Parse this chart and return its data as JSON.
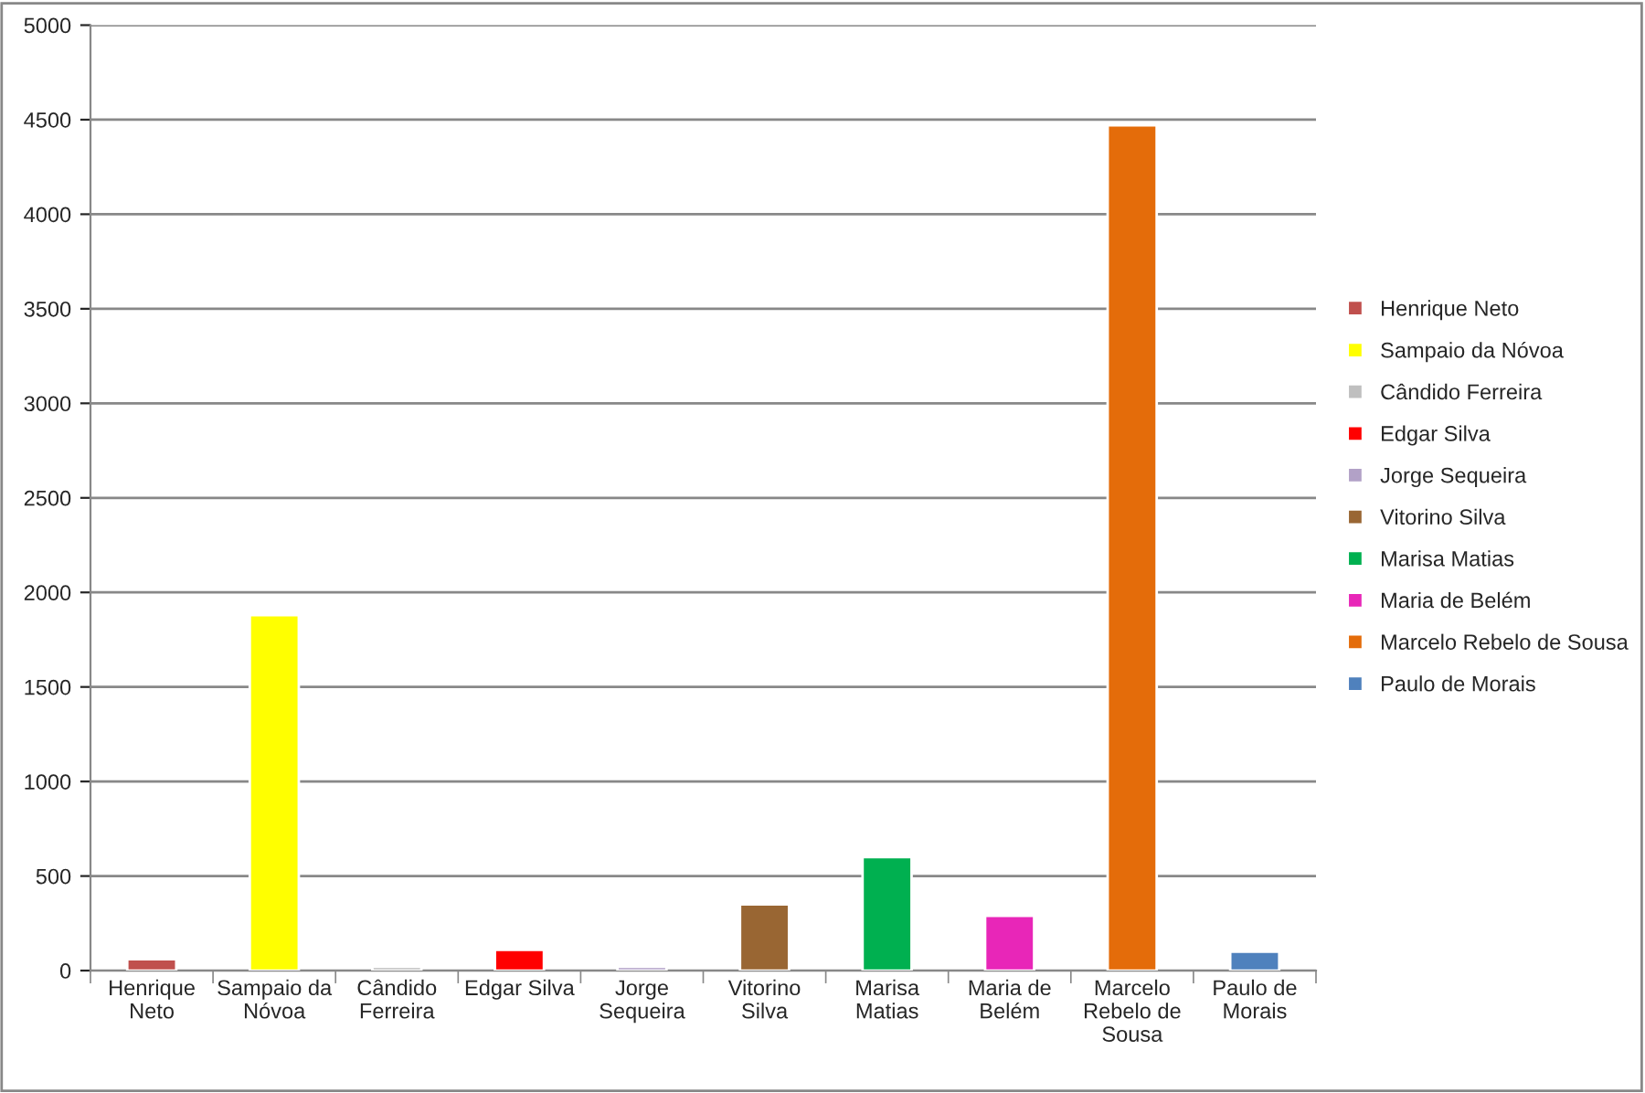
{
  "chart_data": {
    "type": "bar",
    "categories": [
      "Henrique Neto",
      "Sampaio da Nóvoa",
      "Cândido Ferreira",
      "Edgar Silva",
      "Jorge Sequeira",
      "Vitorino Silva",
      "Marisa Matias",
      "Maria de Belém",
      "Marcelo Rebelo de Sousa",
      "Paulo de Morais"
    ],
    "series": [
      {
        "name": "Henrique Neto",
        "color": "#c0504d",
        "values": [
          60,
          null,
          null,
          null,
          null,
          null,
          null,
          null,
          null,
          null
        ]
      },
      {
        "name": "Sampaio da Nóvoa",
        "color": "#ffff00",
        "values": [
          null,
          1880,
          null,
          null,
          null,
          null,
          null,
          null,
          null,
          null
        ]
      },
      {
        "name": "Cândido Ferreira",
        "color": "#bfbfbf",
        "values": [
          null,
          null,
          20,
          null,
          null,
          null,
          null,
          null,
          null,
          null
        ]
      },
      {
        "name": "Edgar Silva",
        "color": "#ff0000",
        "values": [
          null,
          null,
          null,
          110,
          null,
          null,
          null,
          null,
          null,
          null
        ]
      },
      {
        "name": "Jorge Sequeira",
        "color": "#b2a1c7",
        "values": [
          null,
          null,
          null,
          null,
          20,
          null,
          null,
          null,
          null,
          null
        ]
      },
      {
        "name": "Vitorino Silva",
        "color": "#996633",
        "values": [
          null,
          null,
          null,
          null,
          null,
          350,
          null,
          null,
          null,
          null
        ]
      },
      {
        "name": "Marisa Matias",
        "color": "#00b050",
        "values": [
          null,
          null,
          null,
          null,
          null,
          null,
          600,
          null,
          null,
          null
        ]
      },
      {
        "name": "Maria de Belém",
        "color": "#e826b8",
        "values": [
          null,
          null,
          null,
          null,
          null,
          null,
          null,
          290,
          null,
          null
        ]
      },
      {
        "name": "Marcelo Rebelo de Sousa",
        "color": "#e46c0a",
        "values": [
          null,
          null,
          null,
          null,
          null,
          null,
          null,
          null,
          4470,
          null
        ]
      },
      {
        "name": "Paulo de Morais",
        "color": "#4f81bd",
        "values": [
          null,
          null,
          null,
          null,
          null,
          null,
          null,
          null,
          null,
          100
        ]
      }
    ],
    "ylim": [
      0,
      5000
    ],
    "yticks": [
      0,
      500,
      1000,
      1500,
      2000,
      2500,
      3000,
      3500,
      4000,
      4500,
      5000
    ],
    "grid": "y",
    "legend": "right"
  }
}
